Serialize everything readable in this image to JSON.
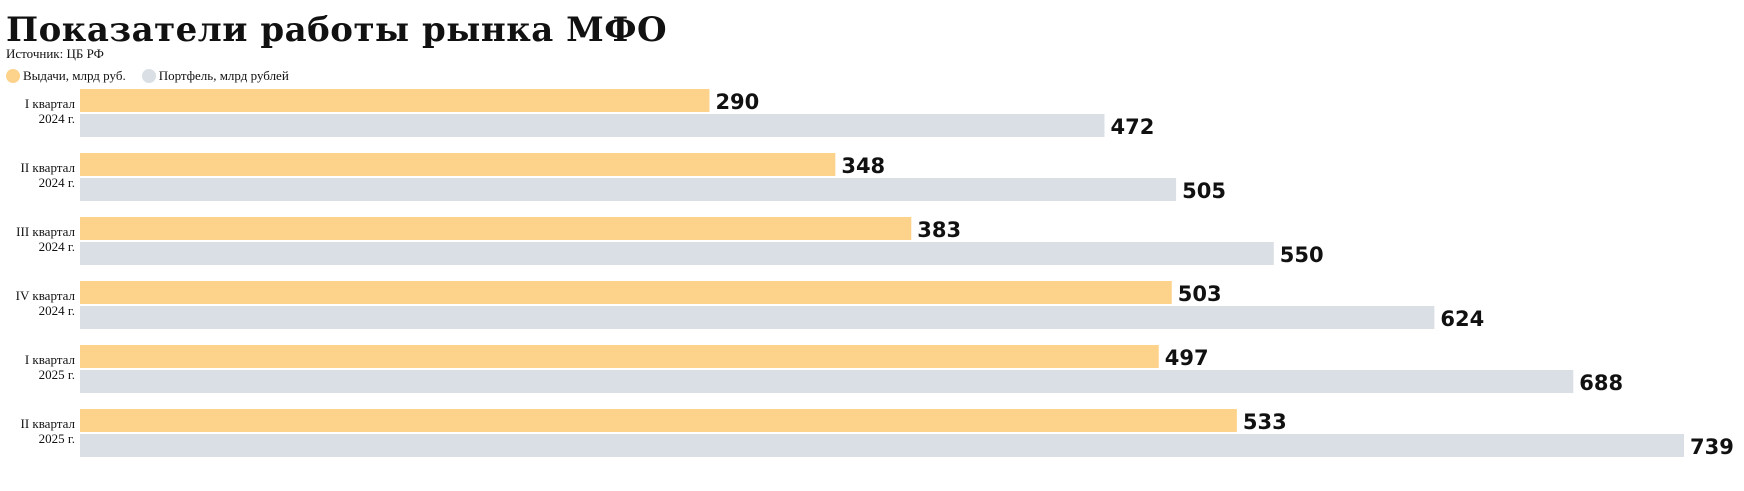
{
  "header": {
    "title": "Показатели работы рынка МФО",
    "source": "Источник: ЦБ РФ"
  },
  "colors": {
    "issuance": "#fdd38b",
    "portfolio": "#d9dfe4",
    "text": "#111111"
  },
  "chart_data": {
    "type": "bar",
    "orientation": "horizontal",
    "title": "Показатели работы рынка МФО",
    "subtitle": "Источник: ЦБ РФ",
    "categories": [
      [
        "I квартал",
        "2024 г."
      ],
      [
        "II квартал",
        "2024 г."
      ],
      [
        "III квартал",
        "2024 г."
      ],
      [
        "IV квартал",
        "2024 г."
      ],
      [
        "I квартал",
        "2025 г."
      ],
      [
        "II квартал",
        "2025 г."
      ]
    ],
    "series": [
      {
        "name": "Выдачи, млрд руб.",
        "values": [
          290,
          348,
          383,
          503,
          497,
          533
        ],
        "color": "#fdd38b"
      },
      {
        "name": "Портфель, млрд рублей",
        "values": [
          472,
          505,
          550,
          624,
          688,
          739
        ],
        "color": "#d9dfe4"
      }
    ],
    "xlim": [
      0,
      739
    ],
    "grid": false,
    "legend": "top-left",
    "data_labels": true
  }
}
